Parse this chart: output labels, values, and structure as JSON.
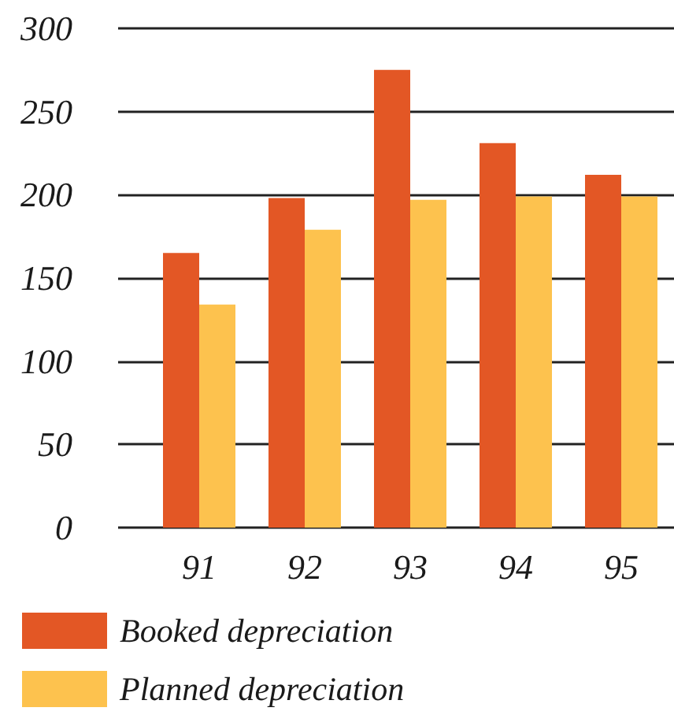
{
  "chart_data": {
    "type": "bar",
    "categories": [
      "91",
      "92",
      "93",
      "94",
      "95"
    ],
    "series": [
      {
        "name": "Booked depreciation",
        "color": "#e35725",
        "values": [
          165,
          198,
          275,
          231,
          212
        ]
      },
      {
        "name": "Planned depreciation",
        "color": "#fdc24e",
        "values": [
          134,
          179,
          197,
          199,
          199
        ]
      }
    ],
    "ylim": [
      0,
      300
    ],
    "yticks": [
      0,
      50,
      100,
      150,
      200,
      250,
      300
    ],
    "grid": "y",
    "legend": "bottom left"
  }
}
